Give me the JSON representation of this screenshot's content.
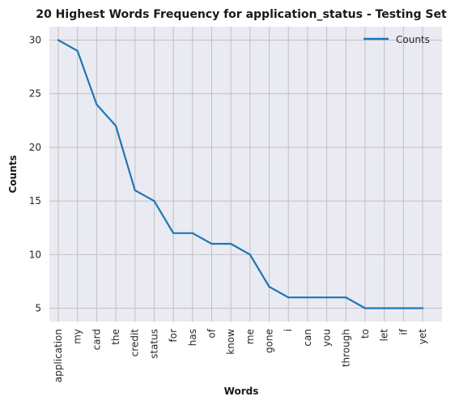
{
  "chart_data": {
    "type": "line",
    "title": "20 Highest Words Frequency for application_status - Testing Set",
    "xlabel": "Words",
    "ylabel": "Counts",
    "categories": [
      "application",
      "my",
      "card",
      "the",
      "credit",
      "status",
      "for",
      "has",
      "of",
      "know",
      "me",
      "gone",
      "i",
      "can",
      "you",
      "through",
      "to",
      "let",
      "if",
      "yet"
    ],
    "series": [
      {
        "name": "Counts",
        "values": [
          30,
          29,
          24,
          22,
          16,
          15,
          12,
          12,
          11,
          11,
          10,
          7,
          6,
          6,
          6,
          6,
          5,
          5,
          5,
          5
        ],
        "color": "#1f77b4"
      }
    ],
    "ylim": [
      3.75,
      31.25
    ],
    "yticks": [
      "5",
      "10",
      "15",
      "20",
      "25",
      "30"
    ],
    "grid": true,
    "legend": "top-right",
    "background": "#eaeaf2",
    "grid_color": "#c0c0c0"
  }
}
